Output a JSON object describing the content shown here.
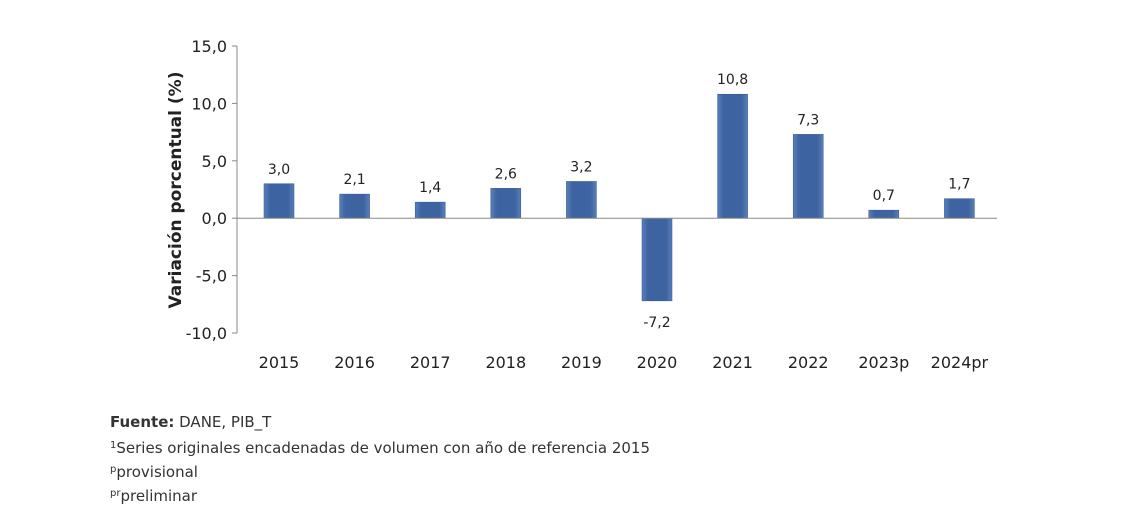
{
  "chart_data": {
    "type": "bar",
    "ylabel": "Variación porcentual (%)",
    "categories": [
      "2015",
      "2016",
      "2017",
      "2018",
      "2019",
      "2020",
      "2021",
      "2022",
      "2023p",
      "2024pr"
    ],
    "values": [
      3.0,
      2.1,
      1.4,
      2.6,
      3.2,
      -7.2,
      10.8,
      7.3,
      0.7,
      1.7
    ],
    "data_labels": [
      "3,0",
      "2,1",
      "1,4",
      "2,6",
      "3,2",
      "-7,2",
      "10,8",
      "7,3",
      "0,7",
      "1,7"
    ],
    "ylim": [
      -10,
      15
    ],
    "yticks": [
      "-10,0",
      "-5,0",
      "0,0",
      "5,0",
      "10,0",
      "15,0"
    ],
    "grid": false,
    "bar_color": "#3d64a0"
  },
  "footer": {
    "source_label": "Fuente:",
    "source_text": " DANE, PIB_T",
    "note1_mark": "1",
    "note1_text": "Series originales encadenadas de volumen con año de referencia 2015",
    "note2_mark": "p",
    "note2_text": "provisional",
    "note3_mark": "pr",
    "note3_text": "preliminar"
  }
}
